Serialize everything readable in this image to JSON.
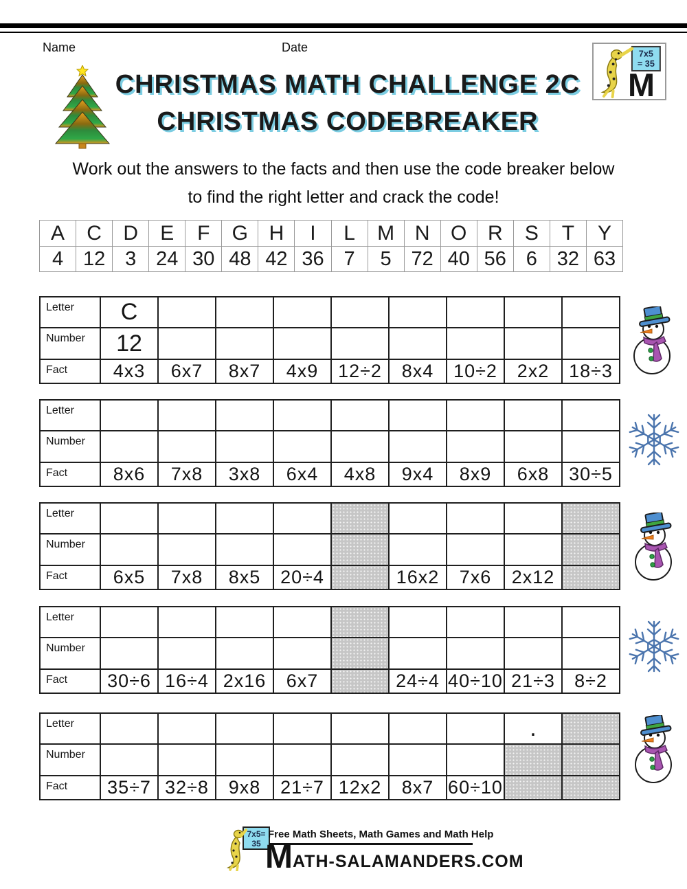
{
  "page": {
    "name_label": "Name",
    "date_label": "Date"
  },
  "header": {
    "title_line1": "CHRISTMAS MATH CHALLENGE 2C",
    "title_line2": "CHRISTMAS CODEBREAKER",
    "logo": {
      "board_line1": "7x5",
      "board_line2": "= 35",
      "m": "M"
    }
  },
  "instructions": {
    "line1": "Work out the answers to the facts and then use the code breaker below",
    "line2": "to find the right letter and crack the code!"
  },
  "code_table": {
    "letters": [
      "A",
      "C",
      "D",
      "E",
      "F",
      "G",
      "H",
      "I",
      "L",
      "M",
      "N",
      "O",
      "R",
      "S",
      "T",
      "Y"
    ],
    "numbers": [
      "4",
      "12",
      "3",
      "24",
      "30",
      "48",
      "42",
      "36",
      "7",
      "5",
      "72",
      "40",
      "56",
      "6",
      "32",
      "63"
    ]
  },
  "row_labels": {
    "letter": "Letter",
    "number": "Number",
    "fact": "Fact"
  },
  "fact_tables": [
    {
      "decoration": "snowman",
      "columns": [
        {
          "letter": "C",
          "number": "12",
          "fact": "4x3"
        },
        {
          "fact": "6x7"
        },
        {
          "fact": "8x7"
        },
        {
          "fact": "4x9"
        },
        {
          "fact": "12÷2"
        },
        {
          "fact": "8x4"
        },
        {
          "fact": "10÷2"
        },
        {
          "fact": "2x2"
        },
        {
          "fact": "18÷3"
        }
      ]
    },
    {
      "decoration": "snowflake",
      "columns": [
        {
          "fact": "8x6"
        },
        {
          "fact": "7x8"
        },
        {
          "fact": "3x8"
        },
        {
          "fact": "6x4"
        },
        {
          "fact": "4x8"
        },
        {
          "fact": "9x4"
        },
        {
          "fact": "8x9"
        },
        {
          "fact": "6x8"
        },
        {
          "fact": "30÷5"
        }
      ]
    },
    {
      "decoration": "snowman",
      "columns": [
        {
          "fact": "6x5"
        },
        {
          "fact": "7x8"
        },
        {
          "fact": "8x5"
        },
        {
          "fact": "20÷4"
        },
        {
          "shaded": [
            "letter",
            "number",
            "fact"
          ]
        },
        {
          "fact": "16x2"
        },
        {
          "fact": "7x6"
        },
        {
          "fact": "2x12"
        },
        {
          "shaded": [
            "letter",
            "number",
            "fact"
          ]
        }
      ]
    },
    {
      "decoration": "snowflake",
      "columns": [
        {
          "fact": "30÷6"
        },
        {
          "fact": "16÷4"
        },
        {
          "fact": "2x16"
        },
        {
          "fact": "6x7"
        },
        {
          "shaded": [
            "letter",
            "number",
            "fact"
          ]
        },
        {
          "fact": "24÷4"
        },
        {
          "fact": "40÷10"
        },
        {
          "fact": "21÷3"
        },
        {
          "fact": "8÷2"
        }
      ]
    },
    {
      "decoration": "snowman",
      "columns": [
        {
          "fact": "35÷7"
        },
        {
          "fact": "32÷8"
        },
        {
          "fact": "9x8"
        },
        {
          "fact": "21÷7"
        },
        {
          "fact": "12x2"
        },
        {
          "fact": "8x7"
        },
        {
          "fact": "60÷10"
        },
        {
          "letter": ".",
          "shaded": [
            "number",
            "fact"
          ]
        },
        {
          "shaded": [
            "letter",
            "number",
            "fact"
          ]
        }
      ]
    }
  ],
  "footer": {
    "tagline": "Free Math Sheets, Math Games and Math Help",
    "brand_m": "M",
    "brand_rest": "ATH-SALAMANDERS.COM",
    "logo_board_line1": "7x5=",
    "logo_board_line2": "35"
  },
  "colors": {
    "title_shadow": "#7CCDE2",
    "shaded_cell": "#C6C6C6",
    "snowflake_blue": "#4A74AD",
    "snowman_hat_blue": "#4E8FD0",
    "snowman_band_green": "#3FA53F",
    "snowman_scarf_purple": "#A855B0",
    "snowman_nose_orange": "#ED7D1C",
    "button_green": "#2E9E44",
    "logo_board_cyan": "#8FDCF0",
    "salamander_yellow": "#E8D44A",
    "tree_orange": "#E8A21E",
    "tree_green": "#2FA847",
    "star_yellow": "#FFE51E"
  }
}
